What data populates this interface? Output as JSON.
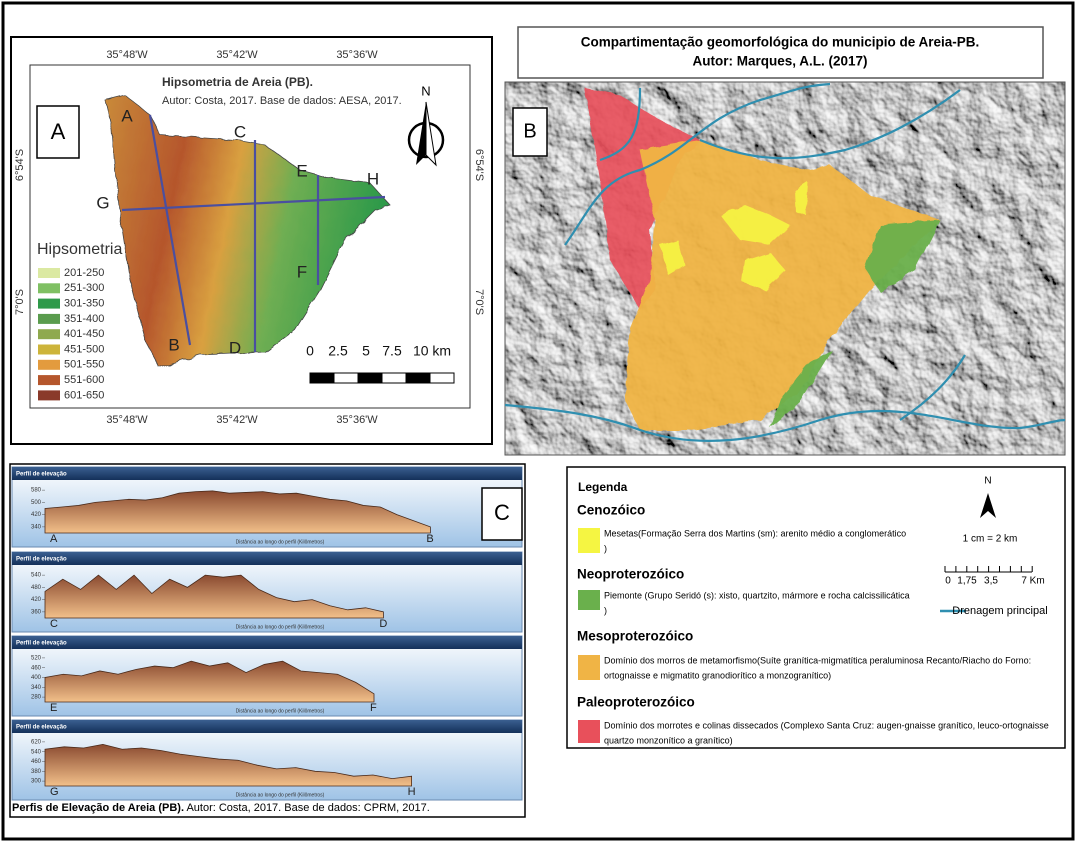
{
  "panel_a": {
    "label": "A",
    "title": "Hipsometria de Areia (PB).",
    "subtitle": "Autor: Costa, 2017. Base de dados: AESA, 2017.",
    "lon_labels": [
      "35°48'W",
      "35°42'W",
      "35°36'W"
    ],
    "lat_labels": [
      "6°54'S",
      "7°0'S"
    ],
    "north": "N",
    "profile_letters": [
      "A",
      "B",
      "C",
      "D",
      "E",
      "F",
      "G",
      "H"
    ],
    "legend_title": "Hipsometria",
    "classes": [
      {
        "label": "201-250",
        "color": "#dbe9a2"
      },
      {
        "label": "251-300",
        "color": "#7fc063"
      },
      {
        "label": "301-350",
        "color": "#2f9a4a"
      },
      {
        "label": "351-400",
        "color": "#5a9c4e"
      },
      {
        "label": "401-450",
        "color": "#8fa94e"
      },
      {
        "label": "451-500",
        "color": "#cdb43a"
      },
      {
        "label": "501-550",
        "color": "#e39b3e"
      },
      {
        "label": "551-600",
        "color": "#b5562c"
      },
      {
        "label": "601-650",
        "color": "#8a3a2a"
      }
    ],
    "scale_labels": [
      "0",
      "2.5",
      "5",
      "7.5",
      "10 km"
    ]
  },
  "panel_b": {
    "label": "B",
    "title": "Compartimentação geomorfológica do municipio de Areia-PB.",
    "author": "Autor: Marques, A.L. (2017)"
  },
  "legend": {
    "title": "Legenda",
    "groups": [
      {
        "era": "Cenozóico",
        "color": "#f5f542",
        "lines": [
          "Mesetas(Formação Serra dos Martins (sm): arenito médio a conglomerático",
          ")"
        ]
      },
      {
        "era": "Neoproterozóico",
        "color": "#6ab04c",
        "lines": [
          "Piemonte (Grupo Seridó (s): xisto, quartzito, mármore e rocha calcissilicática",
          ")"
        ]
      },
      {
        "era": "Mesoproterozóico",
        "color": "#f0b445",
        "lines": [
          "Domínio dos morros de metamorfismo(Suíte granítica-migmatítica peraluminosa Recanto/Riacho do Forno:",
          "ortognaisse e migmatito granodiorítico a monzogranítico)"
        ]
      },
      {
        "era": "Paleoproterozóico",
        "color": "#e8505b",
        "lines": [
          "Domínio dos morrotes e colinas dissecados (Complexo Santa Cruz: augen-gnaisse granítico, leuco-ortognaisse",
          "quartzo monzonítico a granítico)"
        ]
      }
    ],
    "north": "N",
    "scale_text": "1 cm = 2 km",
    "scale_labels": [
      "0",
      "1,75",
      "3,5",
      "7 Km"
    ],
    "drainage": "Drenagem principal"
  },
  "panel_c": {
    "label": "C",
    "profiles": [
      {
        "header": "Perfil de elevação",
        "start": "A",
        "end": "B",
        "xlabel": "Distância ao longo do perfil (Kilômetros)",
        "ylim": [
          300,
          620
        ],
        "yticks": [
          580,
          500,
          420,
          340
        ],
        "elevations": [
          460,
          470,
          480,
          500,
          510,
          520,
          515,
          530,
          560,
          570,
          575,
          560,
          565,
          570,
          555,
          560,
          540,
          520,
          510,
          480,
          470,
          420,
          380,
          340
        ]
      },
      {
        "header": "Perfil de elevação",
        "start": "C",
        "end": "D",
        "xlabel": "Distância ao longo do perfil (Kilômetros)",
        "ylim": [
          330,
          570
        ],
        "yticks": [
          540,
          480,
          420,
          360
        ],
        "elevations": [
          460,
          520,
          470,
          540,
          470,
          540,
          450,
          520,
          480,
          540,
          530,
          540,
          470,
          430,
          410,
          420,
          390,
          370,
          380,
          360
        ]
      },
      {
        "header": "Perfil de elevação",
        "start": "E",
        "end": "F",
        "xlabel": "Distância ao longo do perfil (Kilômetros)",
        "ylim": [
          250,
          550
        ],
        "yticks": [
          520,
          460,
          400,
          340,
          280
        ],
        "elevations": [
          400,
          420,
          410,
          440,
          420,
          450,
          470,
          460,
          500,
          470,
          490,
          430,
          480,
          500,
          440,
          430,
          420,
          370,
          300
        ]
      },
      {
        "header": "Perfil de elevação",
        "start": "G",
        "end": "H",
        "xlabel": "Distância ao longo do perfil (Kilômetros)",
        "ylim": [
          260,
          660
        ],
        "yticks": [
          620,
          540,
          460,
          380,
          300
        ],
        "elevations": [
          560,
          580,
          570,
          600,
          560,
          570,
          550,
          520,
          500,
          480,
          470,
          430,
          400,
          410,
          380,
          370,
          340,
          350,
          320,
          340
        ]
      }
    ],
    "caption_bold": "Perfis de Elevação de Areia (PB).",
    "caption": "Autor: Costa, 2017. Base de dados: CPRM, 2017."
  }
}
